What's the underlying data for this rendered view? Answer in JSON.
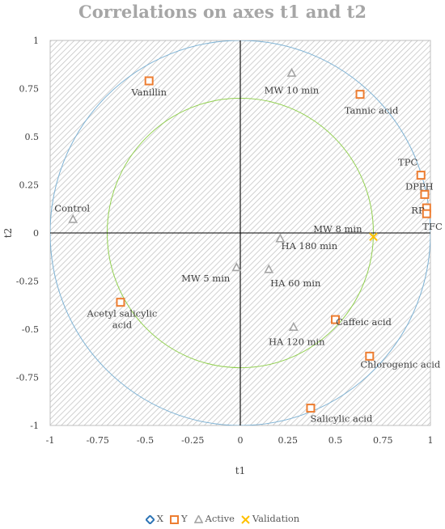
{
  "chart_data": {
    "type": "scatter",
    "title": "Correlations on axes t1 and t2",
    "xlabel": "t1",
    "ylabel": "t2",
    "xlim": [
      -1,
      1
    ],
    "ylim": [
      -1,
      1
    ],
    "xticks": [
      "-1",
      "-0.75",
      "-0.5",
      "-0.25",
      "0",
      "0.25",
      "0.5",
      "0.75",
      "1"
    ],
    "yticks": [
      "1",
      "0.75",
      "0.5",
      "0.25",
      "0",
      "-0.25",
      "-0.5",
      "-0.75",
      "-1"
    ],
    "circles": [
      {
        "radius": 1,
        "color": "#7fb3d5"
      },
      {
        "radius": 0.7,
        "color": "#92d050"
      }
    ],
    "background": "hatched",
    "series": [
      {
        "name": "X",
        "marker": "diamond",
        "color": "#2e75b6",
        "points": []
      },
      {
        "name": "Y",
        "marker": "square",
        "color": "#ed7d31",
        "points": [
          {
            "label": "Vanillin",
            "x": -0.48,
            "y": 0.79
          },
          {
            "label": "Tannic acid",
            "x": 0.63,
            "y": 0.72
          },
          {
            "label": "TPC",
            "x": 0.95,
            "y": 0.3
          },
          {
            "label": "DPPH",
            "x": 0.97,
            "y": 0.2
          },
          {
            "label": "RP",
            "x": 0.98,
            "y": 0.13
          },
          {
            "label": "TFC",
            "x": 0.98,
            "y": 0.1
          },
          {
            "label": "Acetyl salicylic acid",
            "x": -0.63,
            "y": -0.36
          },
          {
            "label": "Caffeic acid",
            "x": 0.5,
            "y": -0.45
          },
          {
            "label": "Chlorogenic acid",
            "x": 0.68,
            "y": -0.64
          },
          {
            "label": "Salicylic acid",
            "x": 0.37,
            "y": -0.91
          }
        ]
      },
      {
        "name": "Active",
        "marker": "triangle",
        "color": "#a5a5a5",
        "points": [
          {
            "label": "MW 10 min",
            "x": 0.27,
            "y": 0.83
          },
          {
            "label": "Control",
            "x": -0.88,
            "y": 0.07
          },
          {
            "label": "HA 180 min",
            "x": 0.21,
            "y": -0.03
          },
          {
            "label": "MW 5 min",
            "x": -0.02,
            "y": -0.18
          },
          {
            "label": "HA 60 min",
            "x": 0.15,
            "y": -0.19
          },
          {
            "label": "HA 120 min",
            "x": 0.28,
            "y": -0.49
          }
        ]
      },
      {
        "name": "Validation",
        "marker": "x",
        "color": "#ffc000",
        "points": [
          {
            "label": "MW 8 min",
            "x": 0.7,
            "y": -0.02
          }
        ]
      }
    ],
    "legend": {
      "position": "bottom"
    }
  }
}
